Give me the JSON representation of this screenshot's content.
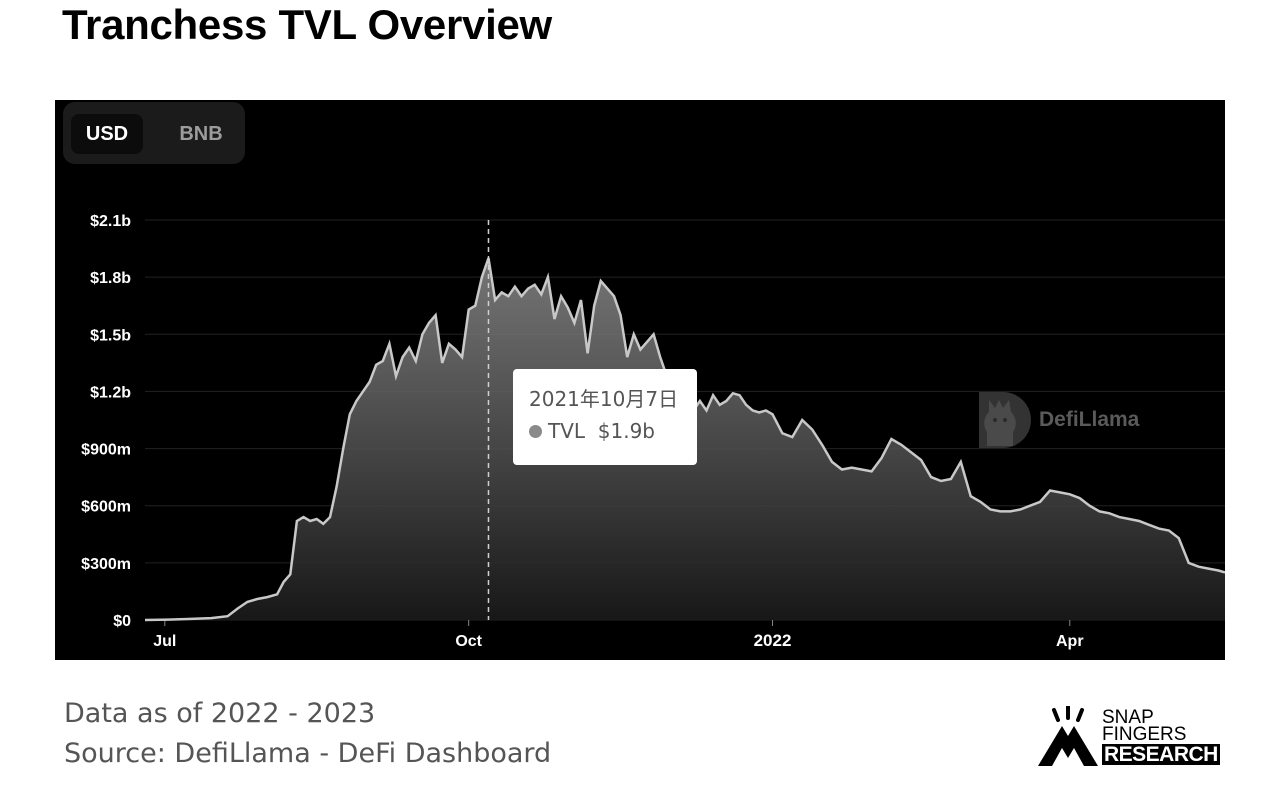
{
  "page": {
    "title": "Tranchess TVL Overview",
    "footer_date": "Data as of 2022 - 2023",
    "footer_source": "Source: DefiLlama - DeFi Dashboard"
  },
  "toggle": {
    "usd": "USD",
    "bnb": "BNB",
    "selected": "USD"
  },
  "tooltip": {
    "date": "2021年10月7日",
    "series": "TVL",
    "value": "$1.9b"
  },
  "watermark": {
    "text": "DefiLlama"
  },
  "brand": {
    "line1": "SNAP",
    "line2": "FINGERS",
    "line3": "RESEARCH"
  },
  "colors": {
    "background": "#000000",
    "line": "#c8c8c8",
    "grid": "#222222",
    "tick": "#ffffff"
  },
  "chart_data": {
    "type": "area",
    "y_unit": "USD",
    "ylim": [
      0,
      2100000000
    ],
    "y_ticks": [
      {
        "value": 0,
        "label": "$0"
      },
      {
        "value": 300000000,
        "label": "$300m"
      },
      {
        "value": 600000000,
        "label": "$600m"
      },
      {
        "value": 900000000,
        "label": "$900m"
      },
      {
        "value": 1200000000,
        "label": "$1.2b"
      },
      {
        "value": 1500000000,
        "label": "$1.5b"
      },
      {
        "value": 1800000000,
        "label": "$1.8b"
      },
      {
        "value": 2100000000,
        "label": "$2.1b"
      }
    ],
    "xlim": [
      "2021-06-25",
      "2022-05-18"
    ],
    "x_ticks": [
      {
        "date": "2021-07-01",
        "label": "Jul",
        "bold": false
      },
      {
        "date": "2021-10-01",
        "label": "Oct",
        "bold": false
      },
      {
        "date": "2022-01-01",
        "label": "2022",
        "bold": true
      },
      {
        "date": "2022-04-01",
        "label": "Apr",
        "bold": false
      }
    ],
    "grid": true,
    "hover_date": "2021-10-07",
    "series": [
      {
        "name": "TVL",
        "points": [
          [
            "2021-06-25",
            0
          ],
          [
            "2021-07-02",
            2000000
          ],
          [
            "2021-07-08",
            5000000
          ],
          [
            "2021-07-15",
            10000000
          ],
          [
            "2021-07-20",
            20000000
          ],
          [
            "2021-07-23",
            60000000
          ],
          [
            "2021-07-26",
            95000000
          ],
          [
            "2021-07-29",
            110000000
          ],
          [
            "2021-08-01",
            120000000
          ],
          [
            "2021-08-04",
            135000000
          ],
          [
            "2021-08-06",
            200000000
          ],
          [
            "2021-08-08",
            240000000
          ],
          [
            "2021-08-10",
            520000000
          ],
          [
            "2021-08-12",
            540000000
          ],
          [
            "2021-08-14",
            520000000
          ],
          [
            "2021-08-16",
            530000000
          ],
          [
            "2021-08-18",
            505000000
          ],
          [
            "2021-08-20",
            540000000
          ],
          [
            "2021-08-22",
            700000000
          ],
          [
            "2021-08-24",
            900000000
          ],
          [
            "2021-08-26",
            1080000000
          ],
          [
            "2021-08-28",
            1150000000
          ],
          [
            "2021-08-30",
            1200000000
          ],
          [
            "2021-09-01",
            1250000000
          ],
          [
            "2021-09-03",
            1340000000
          ],
          [
            "2021-09-05",
            1360000000
          ],
          [
            "2021-09-07",
            1450000000
          ],
          [
            "2021-09-09",
            1280000000
          ],
          [
            "2021-09-11",
            1380000000
          ],
          [
            "2021-09-13",
            1430000000
          ],
          [
            "2021-09-15",
            1360000000
          ],
          [
            "2021-09-17",
            1500000000
          ],
          [
            "2021-09-19",
            1560000000
          ],
          [
            "2021-09-21",
            1600000000
          ],
          [
            "2021-09-23",
            1350000000
          ],
          [
            "2021-09-25",
            1450000000
          ],
          [
            "2021-09-27",
            1420000000
          ],
          [
            "2021-09-29",
            1380000000
          ],
          [
            "2021-10-01",
            1630000000
          ],
          [
            "2021-10-03",
            1650000000
          ],
          [
            "2021-10-05",
            1800000000
          ],
          [
            "2021-10-07",
            1900000000
          ],
          [
            "2021-10-09",
            1680000000
          ],
          [
            "2021-10-11",
            1720000000
          ],
          [
            "2021-10-13",
            1700000000
          ],
          [
            "2021-10-15",
            1750000000
          ],
          [
            "2021-10-17",
            1700000000
          ],
          [
            "2021-10-19",
            1740000000
          ],
          [
            "2021-10-21",
            1760000000
          ],
          [
            "2021-10-23",
            1710000000
          ],
          [
            "2021-10-25",
            1800000000
          ],
          [
            "2021-10-27",
            1580000000
          ],
          [
            "2021-10-29",
            1700000000
          ],
          [
            "2021-10-31",
            1640000000
          ],
          [
            "2021-11-02",
            1560000000
          ],
          [
            "2021-11-04",
            1680000000
          ],
          [
            "2021-11-06",
            1400000000
          ],
          [
            "2021-11-08",
            1650000000
          ],
          [
            "2021-11-10",
            1780000000
          ],
          [
            "2021-11-12",
            1740000000
          ],
          [
            "2021-11-14",
            1700000000
          ],
          [
            "2021-11-16",
            1600000000
          ],
          [
            "2021-11-18",
            1380000000
          ],
          [
            "2021-11-20",
            1500000000
          ],
          [
            "2021-11-22",
            1420000000
          ],
          [
            "2021-11-24",
            1460000000
          ],
          [
            "2021-11-26",
            1500000000
          ],
          [
            "2021-11-28",
            1380000000
          ],
          [
            "2021-11-30",
            1280000000
          ],
          [
            "2021-12-02",
            1150000000
          ],
          [
            "2021-12-04",
            1080000000
          ],
          [
            "2021-12-06",
            1120000000
          ],
          [
            "2021-12-08",
            1100000000
          ],
          [
            "2021-12-10",
            1150000000
          ],
          [
            "2021-12-12",
            1100000000
          ],
          [
            "2021-12-14",
            1180000000
          ],
          [
            "2021-12-16",
            1130000000
          ],
          [
            "2021-12-18",
            1150000000
          ],
          [
            "2021-12-20",
            1190000000
          ],
          [
            "2021-12-22",
            1180000000
          ],
          [
            "2021-12-24",
            1130000000
          ],
          [
            "2021-12-26",
            1100000000
          ],
          [
            "2021-12-28",
            1090000000
          ],
          [
            "2021-12-30",
            1100000000
          ],
          [
            "2022-01-01",
            1080000000
          ],
          [
            "2022-01-04",
            980000000
          ],
          [
            "2022-01-07",
            960000000
          ],
          [
            "2022-01-10",
            1050000000
          ],
          [
            "2022-01-13",
            1000000000
          ],
          [
            "2022-01-16",
            920000000
          ],
          [
            "2022-01-19",
            830000000
          ],
          [
            "2022-01-22",
            790000000
          ],
          [
            "2022-01-25",
            800000000
          ],
          [
            "2022-01-28",
            790000000
          ],
          [
            "2022-01-31",
            780000000
          ],
          [
            "2022-02-03",
            850000000
          ],
          [
            "2022-02-06",
            950000000
          ],
          [
            "2022-02-09",
            920000000
          ],
          [
            "2022-02-12",
            880000000
          ],
          [
            "2022-02-15",
            840000000
          ],
          [
            "2022-02-18",
            750000000
          ],
          [
            "2022-02-21",
            730000000
          ],
          [
            "2022-02-24",
            740000000
          ],
          [
            "2022-02-27",
            830000000
          ],
          [
            "2022-03-02",
            650000000
          ],
          [
            "2022-03-05",
            620000000
          ],
          [
            "2022-03-08",
            580000000
          ],
          [
            "2022-03-11",
            570000000
          ],
          [
            "2022-03-14",
            570000000
          ],
          [
            "2022-03-17",
            580000000
          ],
          [
            "2022-03-20",
            600000000
          ],
          [
            "2022-03-23",
            620000000
          ],
          [
            "2022-03-26",
            680000000
          ],
          [
            "2022-03-29",
            670000000
          ],
          [
            "2022-04-01",
            660000000
          ],
          [
            "2022-04-04",
            640000000
          ],
          [
            "2022-04-07",
            600000000
          ],
          [
            "2022-04-10",
            570000000
          ],
          [
            "2022-04-13",
            560000000
          ],
          [
            "2022-04-16",
            540000000
          ],
          [
            "2022-04-19",
            530000000
          ],
          [
            "2022-04-22",
            520000000
          ],
          [
            "2022-04-25",
            500000000
          ],
          [
            "2022-04-28",
            480000000
          ],
          [
            "2022-05-01",
            470000000
          ],
          [
            "2022-05-04",
            430000000
          ],
          [
            "2022-05-07",
            300000000
          ],
          [
            "2022-05-10",
            280000000
          ],
          [
            "2022-05-13",
            270000000
          ],
          [
            "2022-05-16",
            260000000
          ],
          [
            "2022-05-18",
            250000000
          ]
        ]
      }
    ]
  }
}
